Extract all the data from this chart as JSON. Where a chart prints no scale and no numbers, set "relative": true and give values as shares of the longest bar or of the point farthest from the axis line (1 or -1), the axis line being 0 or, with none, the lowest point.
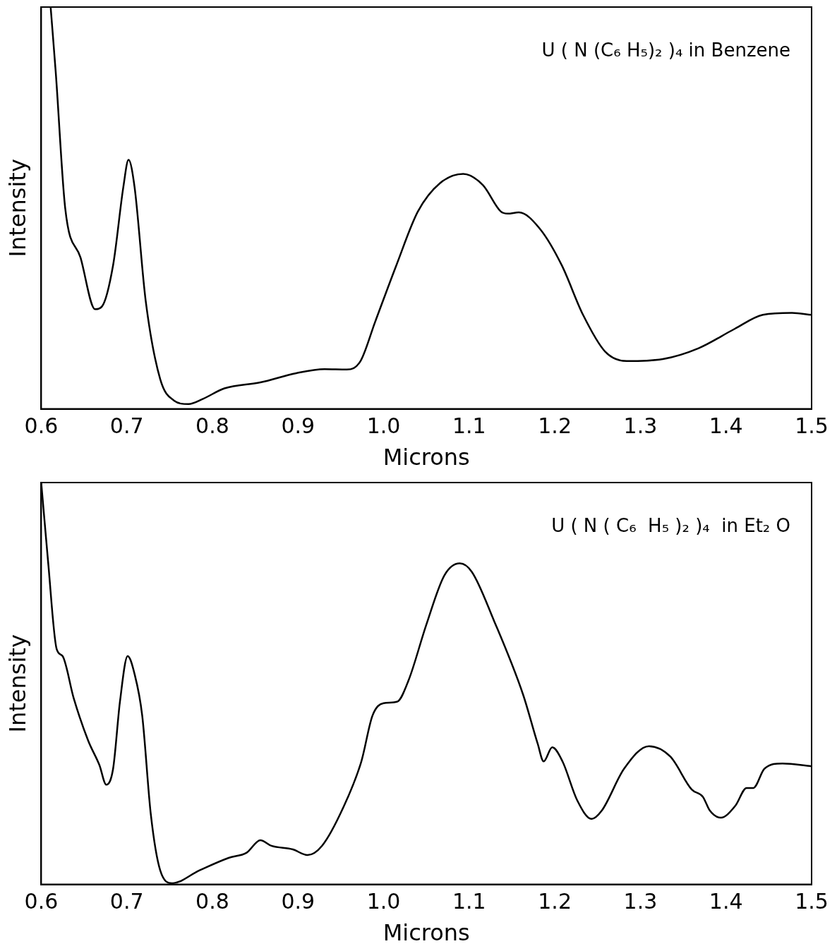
{
  "chart_data": [
    {
      "type": "line",
      "relative": true,
      "xlabel": "Microns",
      "ylabel": "Intensity",
      "annotations": [
        "U ( N (C₆ H₅)₂ )₄ in Benzene"
      ],
      "xlim": [
        0.6,
        1.5
      ],
      "xticks": [
        0.6,
        0.7,
        0.8,
        0.9,
        {
          "value": 1,
          "label": "1.0"
        },
        1.1,
        1.2,
        1.3,
        1.4,
        1.5
      ],
      "x": [
        0.611,
        0.617,
        0.628,
        0.646,
        0.663,
        0.671,
        0.684,
        0.696,
        0.702,
        0.709,
        0.722,
        0.739,
        0.755,
        0.772,
        0.789,
        0.814,
        0.856,
        0.898,
        0.931,
        0.957,
        0.973,
        0.99,
        1.015,
        1.04,
        1.066,
        1.093,
        1.116,
        1.137,
        1.145,
        1.158,
        1.183,
        1.208,
        1.233,
        1.259,
        1.284,
        1.326,
        1.368,
        1.41,
        1.443,
        1.477,
        1.5
      ],
      "series": [
        {
          "color": "#000000",
          "values": [
            1.0,
            0.837,
            0.5,
            0.376,
            0.248,
            0.255,
            0.358,
            0.553,
            0.62,
            0.553,
            0.27,
            0.074,
            0.021,
            0.012,
            0.025,
            0.051,
            0.066,
            0.089,
            0.099,
            0.098,
            0.119,
            0.216,
            0.358,
            0.491,
            0.562,
            0.585,
            0.557,
            0.491,
            0.486,
            0.489,
            0.447,
            0.358,
            0.234,
            0.142,
            0.119,
            0.124,
            0.151,
            0.199,
            0.234,
            0.239,
            0.234
          ]
        }
      ]
    },
    {
      "type": "line",
      "relative": true,
      "xlabel": "Microns",
      "ylabel": "Intensity",
      "annotations": [
        "U ( N ( C₆  H₅ )₂ )₄  in Et₂ O"
      ],
      "xlim": [
        0.6,
        1.5
      ],
      "xticks": [
        0.6,
        0.7,
        0.8,
        0.9,
        {
          "value": 1,
          "label": "1.0"
        },
        1.1,
        1.2,
        1.3,
        1.4,
        1.5
      ],
      "x": [
        0.6,
        0.608,
        0.618,
        0.625,
        0.638,
        0.655,
        0.668,
        0.676,
        0.684,
        0.692,
        0.701,
        0.709,
        0.718,
        0.728,
        0.739,
        0.753,
        0.785,
        0.819,
        0.84,
        0.856,
        0.869,
        0.894,
        0.911,
        0.928,
        0.953,
        0.974,
        0.987,
        1.0,
        1.016,
        1.029,
        1.05,
        1.071,
        1.089,
        1.103,
        1.129,
        1.163,
        1.18,
        1.187,
        1.197,
        1.209,
        1.226,
        1.243,
        1.255,
        1.281,
        1.31,
        1.335,
        1.36,
        1.373,
        1.381,
        1.394,
        1.411,
        1.424,
        1.432,
        1.445,
        1.466,
        1.5
      ],
      "series": [
        {
          "color": "#000000",
          "values": [
            1.0,
            0.804,
            0.586,
            0.568,
            0.463,
            0.357,
            0.297,
            0.248,
            0.288,
            0.455,
            0.568,
            0.524,
            0.42,
            0.175,
            0.035,
            0.003,
            0.035,
            0.066,
            0.079,
            0.11,
            0.096,
            0.087,
            0.073,
            0.096,
            0.192,
            0.306,
            0.42,
            0.451,
            0.455,
            0.507,
            0.647,
            0.769,
            0.799,
            0.778,
            0.656,
            0.472,
            0.35,
            0.306,
            0.341,
            0.306,
            0.21,
            0.163,
            0.184,
            0.288,
            0.344,
            0.318,
            0.236,
            0.218,
            0.184,
            0.166,
            0.196,
            0.24,
            0.24,
            0.288,
            0.301,
            0.294
          ]
        }
      ]
    }
  ]
}
